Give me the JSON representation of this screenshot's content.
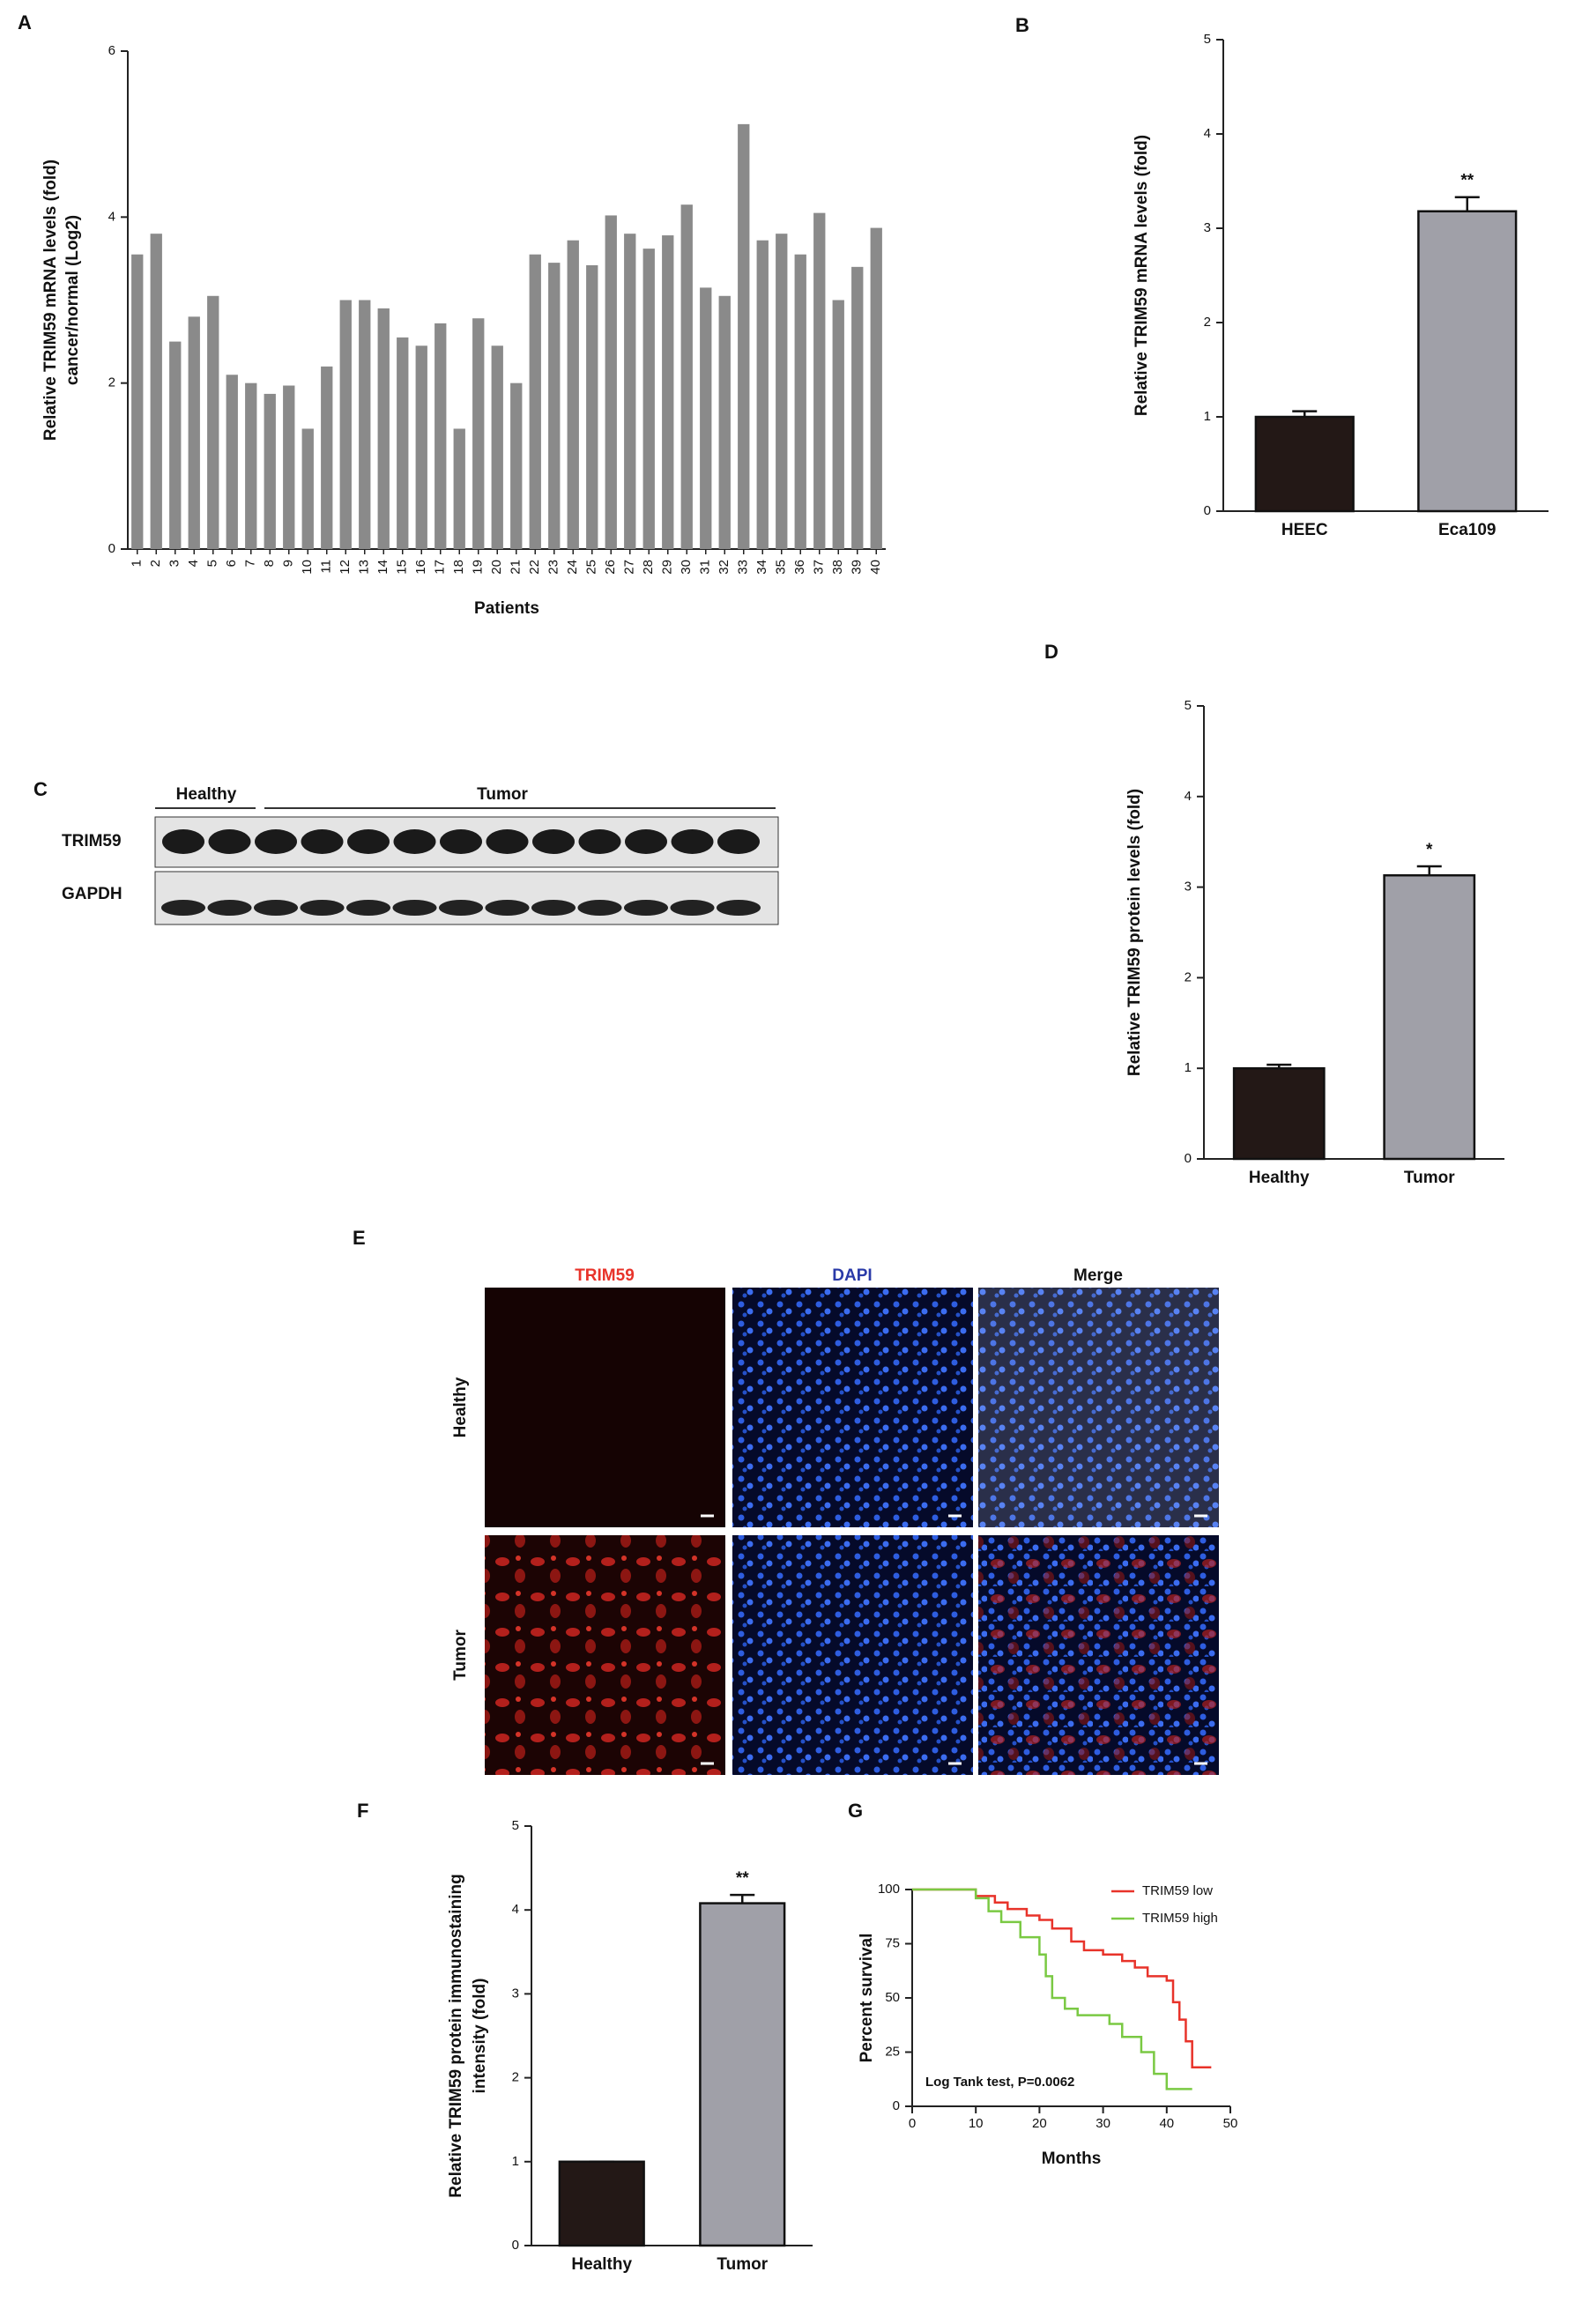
{
  "panel_labels": [
    "A",
    "B",
    "C",
    "D",
    "E",
    "F",
    "G"
  ],
  "chart_data": [
    {
      "type": "bar",
      "y_label": [
        "Relative TRIM59 mRNA levels (fold)",
        "cancer/normal (Log2)"
      ],
      "x_label": "Patients",
      "categories": [
        "1",
        "2",
        "3",
        "4",
        "5",
        "6",
        "7",
        "8",
        "9",
        "10",
        "11",
        "12",
        "13",
        "14",
        "15",
        "16",
        "17",
        "18",
        "19",
        "20",
        "21",
        "22",
        "23",
        "24",
        "25",
        "26",
        "27",
        "28",
        "29",
        "30",
        "31",
        "32",
        "33",
        "34",
        "35",
        "36",
        "37",
        "38",
        "39",
        "40"
      ],
      "values": [
        3.55,
        3.8,
        2.5,
        2.8,
        3.05,
        2.1,
        2.0,
        1.87,
        1.97,
        1.45,
        2.2,
        3.0,
        3.0,
        2.9,
        2.55,
        2.45,
        2.72,
        1.45,
        2.78,
        2.45,
        2.0,
        3.55,
        3.45,
        3.72,
        3.42,
        4.02,
        3.8,
        3.62,
        3.78,
        4.15,
        3.15,
        3.05,
        5.12,
        3.72,
        3.8,
        3.55,
        4.05,
        3.0,
        3.4,
        3.87
      ],
      "color": "#8a8a8a",
      "ylim": [
        0,
        6
      ],
      "yticks": [
        0,
        2,
        4,
        6
      ]
    },
    {
      "type": "bar",
      "y_label": "Relative TRIM59 mRNA levels (fold)",
      "categories": [
        "HEEC",
        "Eca109"
      ],
      "values": [
        1.0,
        3.18
      ],
      "errors": [
        0.06,
        0.15
      ],
      "annotations": [
        null,
        "**"
      ],
      "colors": [
        "#231816",
        "#a0a0a8"
      ],
      "ylim": [
        0,
        5
      ],
      "yticks": [
        0,
        1,
        2,
        3,
        4,
        5
      ]
    },
    {
      "type": "bar",
      "y_label": "Relative TRIM59 protein levels (fold)",
      "categories": [
        "Healthy",
        "Tumor"
      ],
      "values": [
        1.0,
        3.13
      ],
      "errors": [
        0.04,
        0.1
      ],
      "annotations": [
        null,
        "*"
      ],
      "colors": [
        "#231816",
        "#a0a0a8"
      ],
      "ylim": [
        0,
        5
      ],
      "yticks": [
        0,
        1,
        2,
        3,
        4,
        5
      ]
    },
    {
      "type": "bar",
      "y_label": [
        "Relative TRIM59 protein immunostaining",
        "intensity (fold)"
      ],
      "categories": [
        "Healthy",
        "Tumor"
      ],
      "values": [
        1.0,
        4.08
      ],
      "errors": [
        0,
        0.1
      ],
      "annotations": [
        null,
        "**"
      ],
      "colors": [
        "#231816",
        "#a0a0a8"
      ],
      "ylim": [
        0,
        5
      ],
      "yticks": [
        0,
        1,
        2,
        3,
        4,
        5
      ]
    },
    {
      "type": "line",
      "y_label": "Percent survival",
      "x_label": "Months",
      "annotation": "Log Tank test, P=0.0062",
      "legend": "upper right",
      "xlim": [
        0,
        50
      ],
      "xticks": [
        0,
        10,
        20,
        30,
        40,
        50
      ],
      "ylim": [
        0,
        100
      ],
      "yticks": [
        0,
        25,
        50,
        75,
        100
      ],
      "series": [
        {
          "name": "TRIM59 low",
          "color": "#e8332a",
          "x": [
            0,
            10,
            10,
            13,
            13,
            15,
            15,
            18,
            18,
            20,
            20,
            22,
            22,
            25,
            25,
            27,
            27,
            30,
            30,
            33,
            33,
            35,
            35,
            37,
            37,
            40,
            40,
            41,
            41,
            42,
            42,
            43,
            43,
            44,
            44,
            47
          ],
          "values": [
            100,
            100,
            97,
            97,
            94,
            94,
            91,
            91,
            88,
            88,
            86,
            86,
            82,
            82,
            76,
            76,
            72,
            72,
            70,
            70,
            67,
            67,
            64,
            64,
            60,
            60,
            58,
            58,
            48,
            48,
            40,
            40,
            30,
            30,
            18,
            18
          ]
        },
        {
          "name": "TRIM59 high",
          "color": "#7ac943",
          "x": [
            0,
            10,
            10,
            12,
            12,
            14,
            14,
            17,
            17,
            20,
            20,
            21,
            21,
            22,
            22,
            24,
            24,
            26,
            26,
            31,
            31,
            33,
            33,
            36,
            36,
            38,
            38,
            40,
            40,
            44
          ],
          "values": [
            100,
            100,
            96,
            96,
            90,
            90,
            85,
            85,
            78,
            78,
            70,
            70,
            60,
            60,
            50,
            50,
            45,
            45,
            42,
            42,
            38,
            38,
            32,
            32,
            25,
            25,
            15,
            15,
            8,
            8
          ]
        }
      ]
    }
  ],
  "blot": {
    "groups": [
      "Healthy",
      "Tumor"
    ],
    "rows": [
      "TRIM59",
      "GAPDH"
    ]
  },
  "immunofluorescence": {
    "columns": [
      "TRIM59",
      "DAPI",
      "Merge"
    ],
    "rows": [
      "Healthy",
      "Tumor"
    ]
  }
}
